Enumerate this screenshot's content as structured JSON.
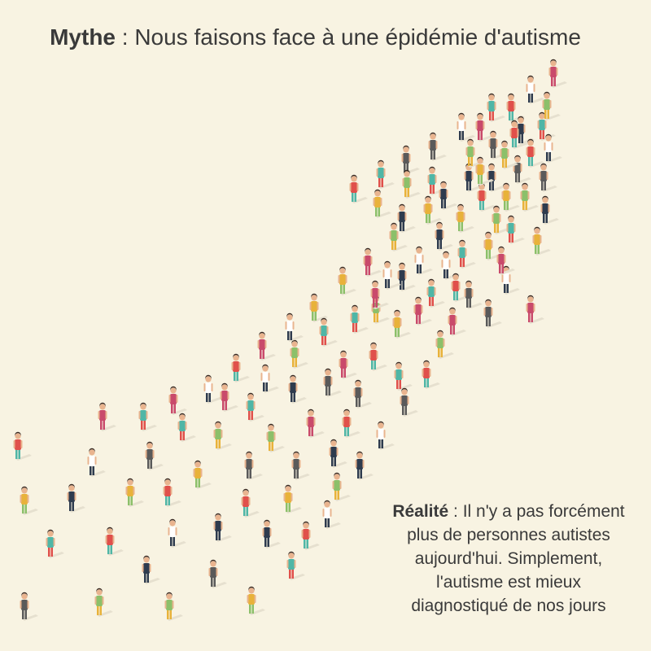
{
  "title": {
    "label": "Mythe",
    "text": " : Nous faisons face à une épidémie d'autisme"
  },
  "reality": {
    "label": "Réalité",
    "lines": [
      " : Il n'y a pas forcément",
      "plus de personnes autistes",
      "aujourd'hui. Simplement,",
      "l'autisme est mieux",
      "diagnostiqué de nos jours"
    ]
  },
  "illustration": {
    "subject": "crowd of people forming a rising arrow",
    "colors": {
      "background": "#f8f3e2",
      "shadow": "#e6e0cf",
      "skin": "#e9b48f",
      "hair": "#3a2b24",
      "clothing": [
        "#e0504b",
        "#e8b23a",
        "#4fb6a6",
        "#5a5a5a",
        "#2e3b4e",
        "#8cc06a",
        "#ffffff",
        "#c94a6b"
      ]
    }
  }
}
